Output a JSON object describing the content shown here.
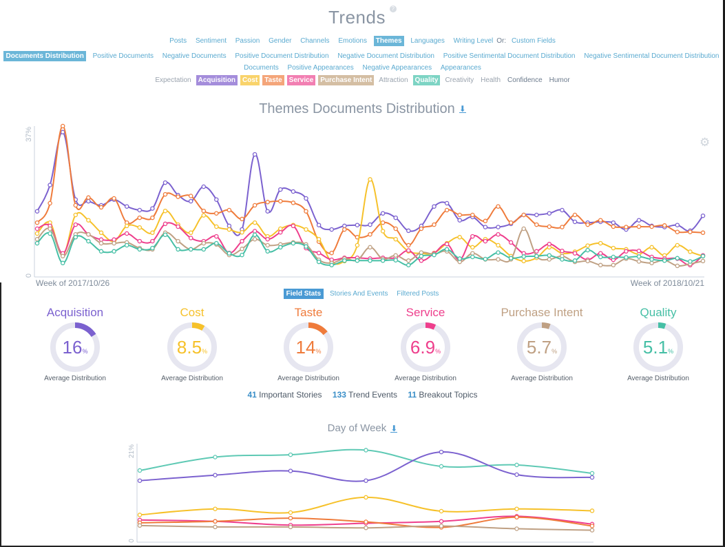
{
  "header": {
    "title": "Trends",
    "help_icon": "?"
  },
  "nav": {
    "items": [
      {
        "label": "Posts",
        "selected": false
      },
      {
        "label": "Sentiment",
        "selected": false
      },
      {
        "label": "Passion",
        "selected": false
      },
      {
        "label": "Gender",
        "selected": false
      },
      {
        "label": "Channels",
        "selected": false
      },
      {
        "label": "Emotions",
        "selected": false
      },
      {
        "label": "Themes",
        "selected": true
      },
      {
        "label": "Languages",
        "selected": false
      },
      {
        "label": "Writing Level",
        "selected": false
      }
    ],
    "or_label": "Or:",
    "custom_fields_label": "Custom Fields"
  },
  "metrics": {
    "items": [
      {
        "label": "Documents Distribution",
        "selected": true
      },
      {
        "label": "Positive Documents"
      },
      {
        "label": "Negative Documents"
      },
      {
        "label": "Positive Document Distribution"
      },
      {
        "label": "Negative Document Distribution"
      },
      {
        "label": "Positive Sentimental Document Distribution"
      },
      {
        "label": "Negative Sentimental Document Distribution"
      }
    ],
    "items_row2": [
      {
        "label": "Documents"
      },
      {
        "label": "Positive Appearances"
      },
      {
        "label": "Negative Appearances"
      },
      {
        "label": "Appearances"
      }
    ]
  },
  "themes": [
    {
      "label": "Expectation",
      "active": false
    },
    {
      "label": "Acquisition",
      "active": true,
      "color": "#a48ddb"
    },
    {
      "label": "Cost",
      "active": true,
      "color": "#f9d36b"
    },
    {
      "label": "Taste",
      "active": true,
      "color": "#f4a57a"
    },
    {
      "label": "Service",
      "active": true,
      "color": "#f27fb2"
    },
    {
      "label": "Purchase Intent",
      "active": true,
      "color": "#d4bea3"
    },
    {
      "label": "Attraction",
      "active": false
    },
    {
      "label": "Quality",
      "active": true,
      "color": "#7dd4c4"
    },
    {
      "label": "Creativity",
      "active": false
    },
    {
      "label": "Health",
      "active": false
    },
    {
      "label": "Confidence",
      "active": false
    },
    {
      "label": "Humor",
      "active": false
    }
  ],
  "main_chart": {
    "title": "Themes Documents Distribution",
    "download_icon": "download-icon"
  },
  "settings_icon": "gear-icon",
  "chart_data": [
    {
      "type": "line",
      "title": "Themes Documents Distribution",
      "xlabel_start": "Week of 2017/10/26",
      "xlabel_end": "Week of 2018/10/21",
      "ylabel_max": "37%",
      "ylabel_min": "0",
      "ylim": [
        0,
        37
      ],
      "x_points": 53,
      "series": [
        {
          "name": "Acquisition",
          "color": "#7b61cf",
          "values": [
            15.9,
            22.4,
            35.5,
            18.8,
            18.4,
            17.4,
            18.8,
            17.1,
            16.2,
            16.6,
            23.0,
            19.9,
            18.4,
            22.0,
            18.8,
            12.3,
            11.4,
            30.0,
            15.9,
            21.3,
            20.8,
            19.1,
            12.5,
            11.4,
            12.3,
            12.5,
            12.6,
            15.4,
            14.3,
            11.1,
            12.3,
            17.1,
            17.9,
            13.7,
            14.5,
            12.0,
            12.0,
            12.8,
            15.0,
            15.0,
            15.4,
            16.2,
            13.3,
            13.1,
            13.3,
            13.1,
            11.4,
            13.7,
            12.3,
            12.0,
            12.5,
            11.1,
            14.8
          ]
        },
        {
          "name": "Taste",
          "color": "#ef7b3b",
          "values": [
            13.1,
            17.9,
            37.0,
            17.4,
            19.3,
            16.9,
            19.1,
            13.1,
            14.3,
            14.3,
            20.1,
            19.5,
            19.7,
            16.0,
            15.4,
            16.2,
            14.0,
            17.4,
            18.2,
            18.4,
            18.0,
            15.9,
            8.4,
            5.6,
            11.4,
            9.5,
            10.2,
            13.1,
            11.6,
            7.5,
            11.6,
            12.6,
            16.2,
            15.0,
            15.0,
            13.5,
            17.1,
            13.1,
            15.0,
            12.6,
            12.1,
            12.0,
            15.0,
            12.6,
            13.7,
            12.1,
            12.0,
            12.1,
            12.1,
            12.4,
            10.8,
            10.8,
            10.6
          ]
        },
        {
          "name": "Cost",
          "color": "#f6c12a",
          "values": [
            10.4,
            13.1,
            5.1,
            15.0,
            13.7,
            10.6,
            8.5,
            12.3,
            11.9,
            10.6,
            16.0,
            12.6,
            10.6,
            14.9,
            12.1,
            11.4,
            10.7,
            13.1,
            9.7,
            11.6,
            12.5,
            11.4,
            9.0,
            3.4,
            3.6,
            7.5,
            23.8,
            11.0,
            9.0,
            6.0,
            5.5,
            5.6,
            8.0,
            9.5,
            7.0,
            9.0,
            7.5,
            4.8,
            3.6,
            4.4,
            7.0,
            5.5,
            5.9,
            7.4,
            8.0,
            6.8,
            6.5,
            5.3,
            7.0,
            5.0,
            7.5,
            5.9,
            4.8
          ]
        },
        {
          "name": "Service",
          "color": "#ee3e8c",
          "values": [
            11.6,
            12.3,
            5.5,
            12.6,
            10.2,
            8.9,
            8.9,
            10.4,
            8.5,
            8.5,
            12.8,
            12.1,
            9.3,
            8.5,
            9.7,
            5.6,
            8.5,
            11.0,
            9.0,
            10.7,
            12.3,
            6.8,
            5.6,
            3.9,
            4.4,
            4.4,
            4.2,
            4.4,
            4.4,
            6.2,
            3.7,
            5.5,
            7.8,
            3.9,
            9.7,
            8.5,
            10.2,
            8.2,
            5.5,
            6.0,
            7.8,
            6.1,
            5.5,
            3.9,
            5.5,
            3.9,
            6.0,
            6.1,
            4.6,
            4.2,
            4.2,
            2.6,
            5.0
          ]
        },
        {
          "name": "Purchase Intent",
          "color": "#bfa083",
          "values": [
            9.0,
            11.6,
            4.8,
            10.2,
            10.2,
            8.0,
            8.0,
            8.2,
            6.8,
            6.5,
            10.6,
            8.5,
            6.5,
            8.0,
            7.7,
            5.1,
            6.6,
            9.0,
            7.5,
            7.7,
            8.2,
            7.7,
            3.9,
            3.1,
            4.2,
            3.8,
            7.0,
            4.1,
            5.0,
            3.7,
            5.7,
            5.3,
            6.0,
            3.4,
            5.5,
            4.0,
            4.0,
            4.0,
            11.6,
            4.8,
            4.0,
            4.8,
            3.4,
            3.6,
            2.6,
            2.6,
            4.2,
            3.5,
            3.1,
            3.8,
            2.4,
            2.9,
            3.6
          ]
        },
        {
          "name": "Quality",
          "color": "#45bfa5",
          "values": [
            8.0,
            10.4,
            3.1,
            9.5,
            8.5,
            6.0,
            6.0,
            7.5,
            6.5,
            6.8,
            10.1,
            6.5,
            6.5,
            6.5,
            8.0,
            5.5,
            5.1,
            10.1,
            6.0,
            7.0,
            8.0,
            7.2,
            3.4,
            2.6,
            3.7,
            3.7,
            3.7,
            3.7,
            3.8,
            2.6,
            4.8,
            5.1,
            6.5,
            4.2,
            4.6,
            4.1,
            5.7,
            4.3,
            4.7,
            4.8,
            5.0,
            4.0,
            3.7,
            6.3,
            4.6,
            4.6,
            4.5,
            4.7,
            4.0,
            3.7,
            4.3,
            3.5,
            4.8
          ]
        }
      ]
    },
    {
      "type": "line",
      "title": "Day of Week",
      "ylabel_max": "21%",
      "ylabel_min": "0",
      "ylim": [
        0,
        21
      ],
      "x_points": 7,
      "series": [
        {
          "name": "Quality",
          "color": "#5ec9b4",
          "values": [
            15.2,
            18.1,
            18.6,
            19.6,
            16.1,
            16.4,
            14.6
          ]
        },
        {
          "name": "Acquisition",
          "color": "#7b61cf",
          "values": [
            13.0,
            14.2,
            15.1,
            13.0,
            19.2,
            14.3,
            13.7
          ]
        },
        {
          "name": "Cost",
          "color": "#f6c12a",
          "values": [
            5.6,
            6.9,
            6.1,
            9.4,
            6.4,
            6.9,
            6.5
          ]
        },
        {
          "name": "Service",
          "color": "#ee3e8c",
          "values": [
            4.5,
            4.2,
            3.4,
            3.8,
            4.2,
            5.3,
            3.6
          ]
        },
        {
          "name": "Taste",
          "color": "#ef7b3b",
          "values": [
            3.9,
            4.2,
            4.9,
            4.1,
            2.9,
            5.1,
            3.2
          ]
        },
        {
          "name": "Purchase Intent",
          "color": "#bfa083",
          "values": [
            3.3,
            3.0,
            3.0,
            2.8,
            3.2,
            2.6,
            2.3
          ]
        }
      ]
    }
  ],
  "tabs": [
    {
      "label": "Field Stats",
      "selected": true
    },
    {
      "label": "Stories And Events",
      "selected": false
    },
    {
      "label": "Filtered Posts",
      "selected": false
    }
  ],
  "stats": [
    {
      "name": "Acquisition",
      "value": "16",
      "fraction": 0.16,
      "unit": "%",
      "sub": "Average Distribution",
      "color": "#7b61cf"
    },
    {
      "name": "Cost",
      "value": "8.5",
      "fraction": 0.085,
      "unit": "%",
      "sub": "Average Distribution",
      "color": "#f6c12a"
    },
    {
      "name": "Taste",
      "value": "14",
      "fraction": 0.14,
      "unit": "%",
      "sub": "Average Distribution",
      "color": "#ef7b3b"
    },
    {
      "name": "Service",
      "value": "6.9",
      "fraction": 0.069,
      "unit": "%",
      "sub": "Average Distribution",
      "color": "#ee3e8c"
    },
    {
      "name": "Purchase Intent",
      "value": "5.7",
      "fraction": 0.057,
      "unit": "%",
      "sub": "Average Distribution",
      "color": "#bfa083"
    },
    {
      "name": "Quality",
      "value": "5.1",
      "fraction": 0.051,
      "unit": "%",
      "sub": "Average Distribution",
      "color": "#45bfa5"
    }
  ],
  "summary": [
    {
      "count": "41",
      "label": "Important Stories"
    },
    {
      "count": "133",
      "label": "Trend Events"
    },
    {
      "count": "11",
      "label": "Breakout Topics"
    }
  ],
  "day_of_week": {
    "title": "Day of Week",
    "download_icon": "download-icon"
  }
}
